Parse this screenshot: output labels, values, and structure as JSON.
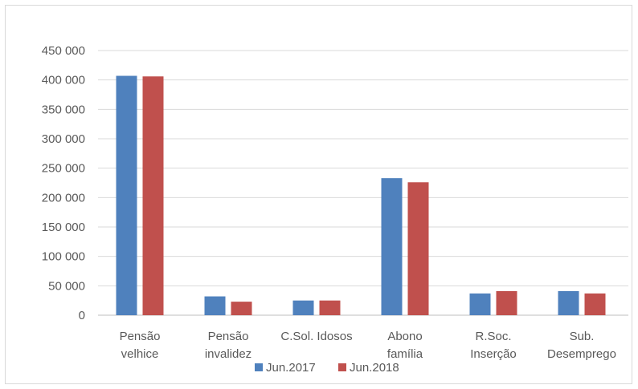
{
  "chart_data": {
    "type": "bar",
    "categories": [
      [
        "Pensão",
        "velhice"
      ],
      [
        "Pensão",
        "invalidez"
      ],
      [
        "C.Sol. Idosos"
      ],
      [
        "Abono",
        "família"
      ],
      [
        "R.Soc.",
        "Inserção"
      ],
      [
        "Sub.",
        "Desemprego"
      ]
    ],
    "series": [
      {
        "name": "Jun.2017",
        "color": "#4f81bd",
        "values": [
          407000,
          32000,
          25000,
          233000,
          37000,
          41000
        ]
      },
      {
        "name": "Jun.2018",
        "color": "#c0504d",
        "values": [
          406000,
          23000,
          25000,
          226000,
          41000,
          37000
        ]
      }
    ],
    "yticks": [
      "0",
      "50 000",
      "100 000",
      "150 000",
      "200 000",
      "250 000",
      "300 000",
      "350 000",
      "400 000",
      "450 000"
    ],
    "ylim": [
      0,
      450000
    ],
    "grid": true,
    "legend_position": "bottom",
    "title": "",
    "xlabel": "",
    "ylabel": ""
  }
}
